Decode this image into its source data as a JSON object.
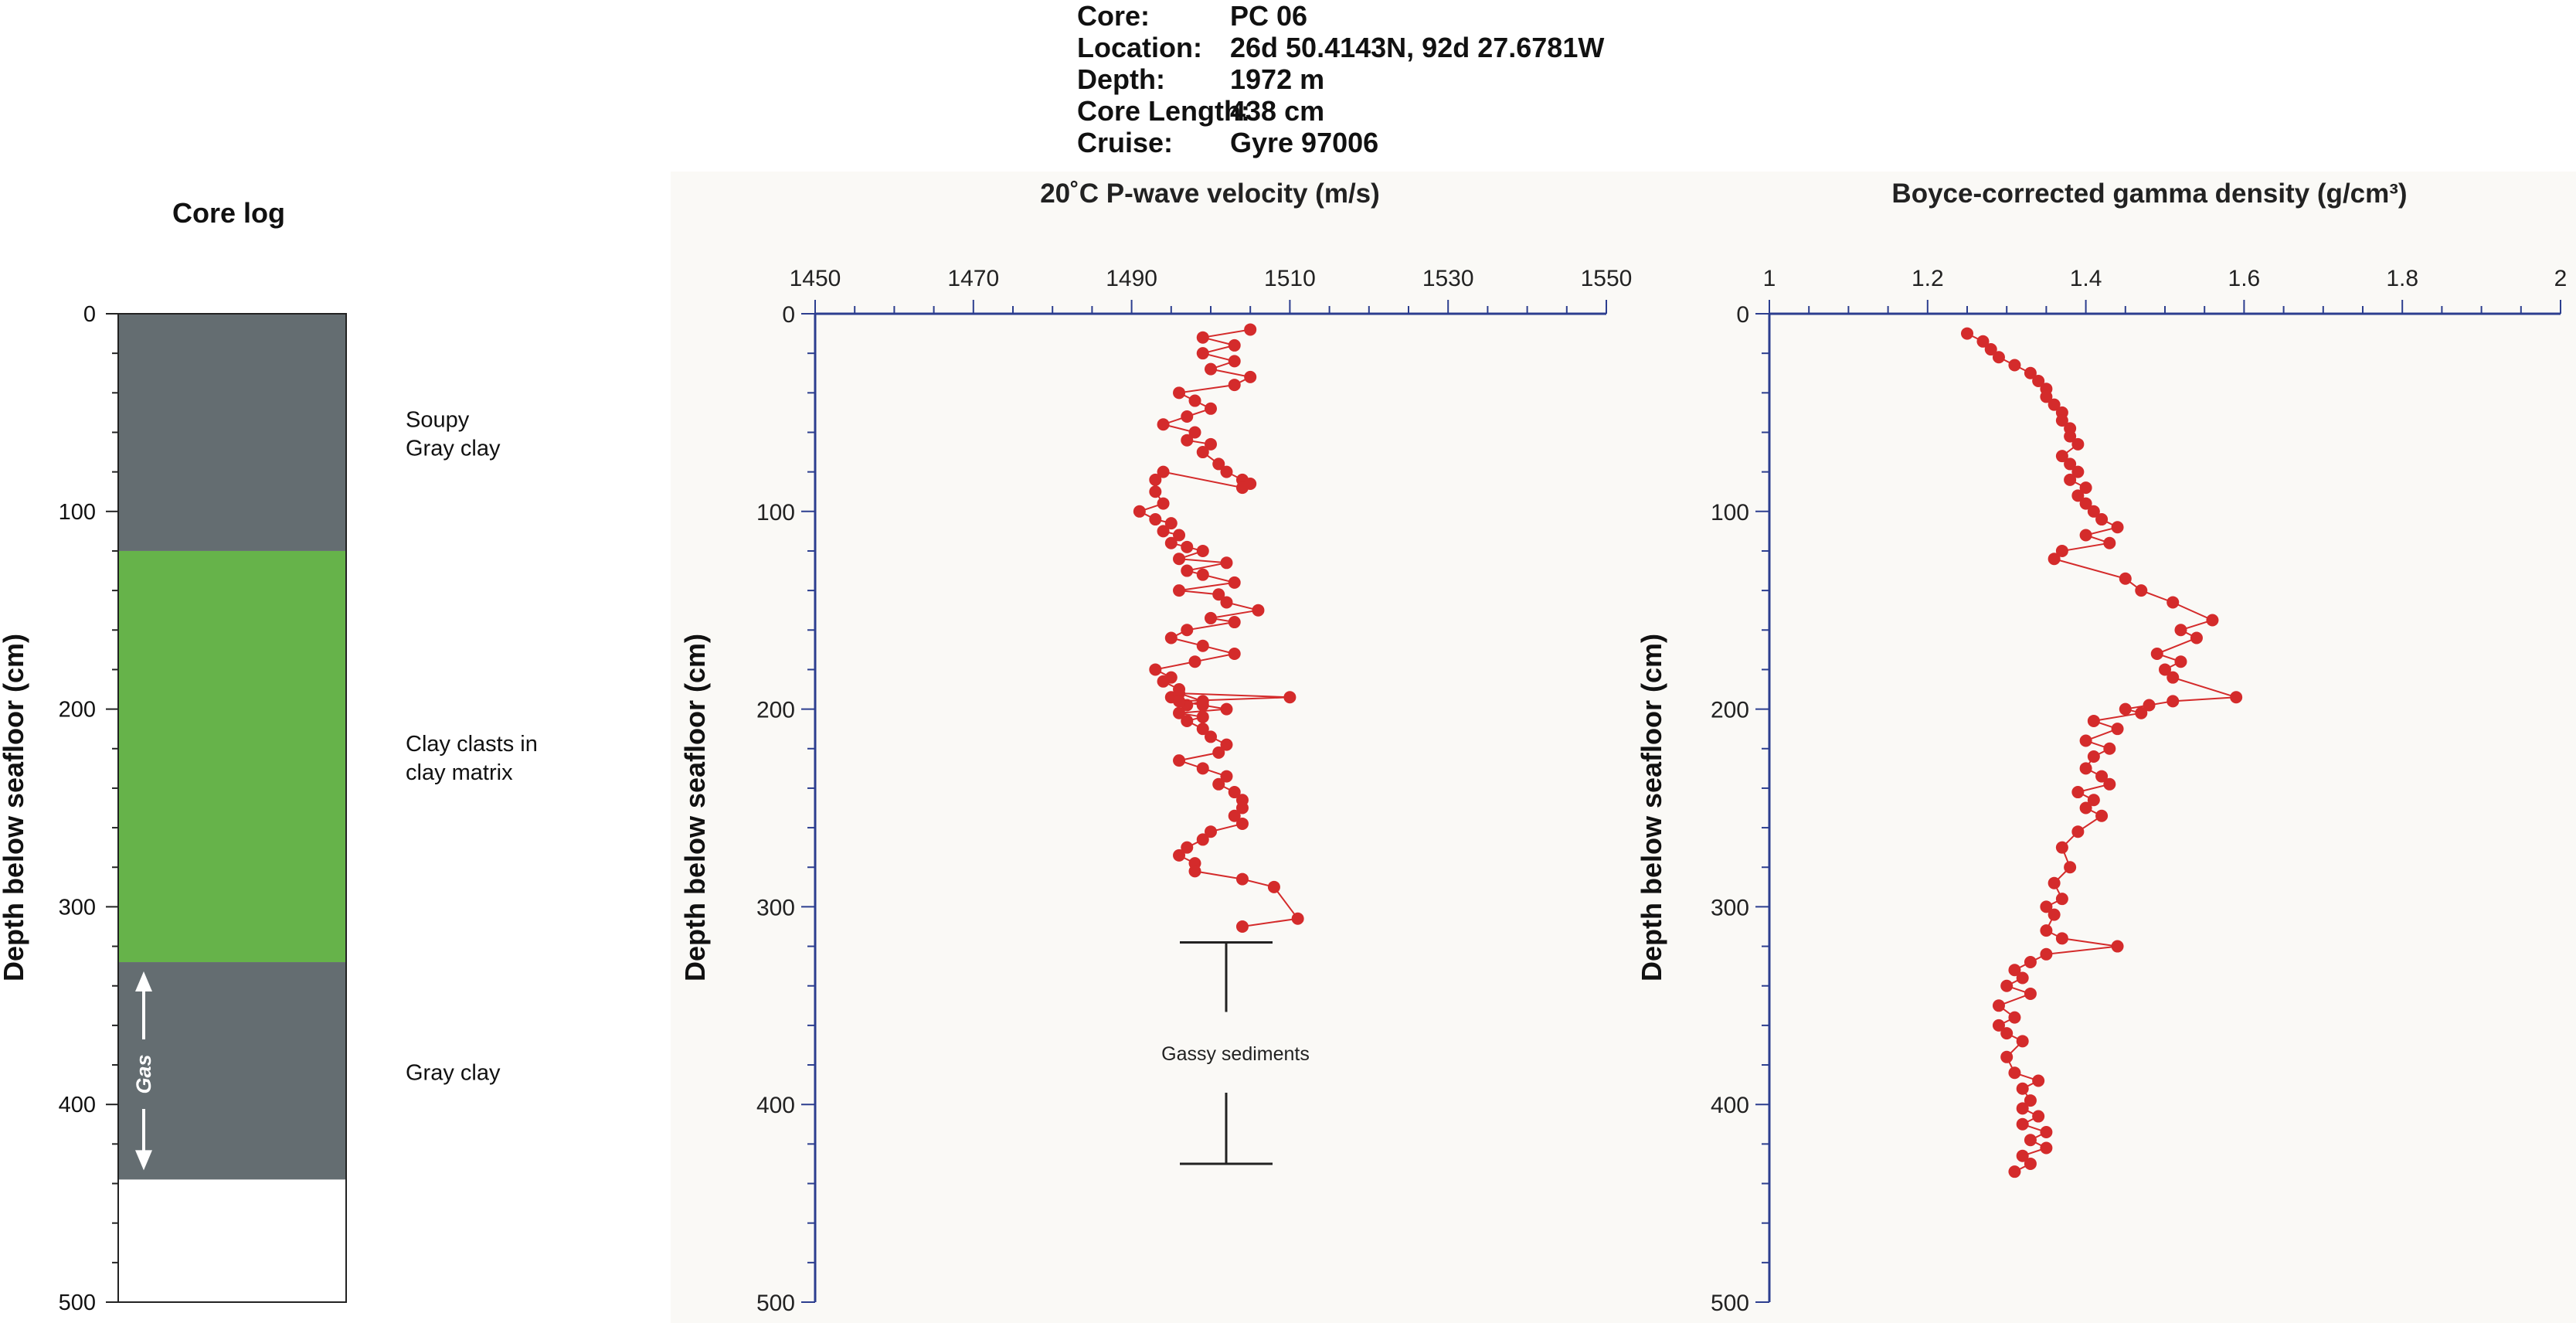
{
  "header": {
    "rows": [
      {
        "label": "Core:",
        "value": "PC 06"
      },
      {
        "label": "Location:",
        "value": "26d 50.4143N, 92d 27.6781W"
      },
      {
        "label": "Depth:",
        "value": "1972 m"
      },
      {
        "label": "Core Length:",
        "value": "438 cm"
      },
      {
        "label": "Cruise:",
        "value": "Gyre 97006"
      }
    ]
  },
  "colors": {
    "data_red": "#d42b2b",
    "axis_blue": "#2c3e8f",
    "clay_gray": "#646d71",
    "clast_green": "#66b34a",
    "panel_bg": "#faf9f6"
  },
  "chart_data": [
    {
      "type": "table",
      "title": "Core log",
      "ylabel": "Depth below seafloor (cm)",
      "ylim": [
        0,
        500
      ],
      "yticks": [
        "0",
        "100",
        "200",
        "300",
        "400",
        "500"
      ],
      "units": [
        {
          "top": 0,
          "bottom": 120,
          "label": "Soupy\nGray clay",
          "color": "#646d71"
        },
        {
          "top": 120,
          "bottom": 328,
          "label": "Clay clasts in\nclay matrix",
          "color": "#66b34a"
        },
        {
          "top": 328,
          "bottom": 438,
          "label": "Gray clay",
          "color": "#646d71"
        },
        {
          "top": 438,
          "bottom": 500,
          "label": "",
          "color": "#ffffff"
        }
      ],
      "gas_annotation": {
        "label": "Gas",
        "from": 328,
        "to": 438
      }
    },
    {
      "type": "line",
      "title": "20˚C P-wave velocity (m/s)",
      "ylabel": "Depth below seafloor (cm)",
      "xlim": [
        1450,
        1550
      ],
      "ylim": [
        0,
        500
      ],
      "xticks": [
        "1450",
        "1470",
        "1490",
        "1510",
        "1530",
        "1550"
      ],
      "yticks": [
        "0",
        "100",
        "200",
        "300",
        "400",
        "500"
      ],
      "annotation": {
        "text": "Gassy sediments",
        "from": 318,
        "to": 430
      },
      "x": [
        1505,
        1499,
        1503,
        1499,
        1503,
        1500,
        1505,
        1503,
        1496,
        1498,
        1500,
        1497,
        1494,
        1498,
        1497,
        1500,
        1499,
        1501,
        1502,
        1504,
        1505,
        1504,
        1494,
        1493,
        1493,
        1494,
        1491,
        1493,
        1495,
        1494,
        1496,
        1495,
        1497,
        1499,
        1496,
        1502,
        1497,
        1499,
        1503,
        1496,
        1501,
        1502,
        1506,
        1500,
        1503,
        1497,
        1495,
        1499,
        1503,
        1498,
        1493,
        1495,
        1494,
        1496,
        1495,
        1497,
        1499,
        1496,
        1510,
        1496,
        1499,
        1502,
        1496,
        1499,
        1497,
        1499,
        1500,
        1502,
        1501,
        1496,
        1499,
        1502,
        1501,
        1503,
        1504,
        1504,
        1503,
        1504,
        1500,
        1499,
        1497,
        1496,
        1498,
        1498,
        1504,
        1508,
        1511,
        1504
      ],
      "y": [
        8,
        12,
        16,
        20,
        24,
        28,
        32,
        36,
        40,
        44,
        48,
        52,
        56,
        60,
        64,
        66,
        70,
        76,
        80,
        84,
        86,
        88,
        80,
        84,
        90,
        96,
        100,
        104,
        106,
        110,
        112,
        116,
        118,
        120,
        124,
        126,
        130,
        132,
        136,
        140,
        142,
        146,
        150,
        154,
        156,
        160,
        164,
        168,
        172,
        176,
        180,
        184,
        186,
        190,
        194,
        198,
        196,
        192,
        194,
        196,
        198,
        200,
        202,
        204,
        206,
        210,
        214,
        218,
        222,
        226,
        230,
        234,
        238,
        242,
        246,
        250,
        254,
        258,
        262,
        266,
        270,
        274,
        278,
        282,
        286,
        290,
        306,
        310
      ]
    },
    {
      "type": "line",
      "title": "Boyce-corrected gamma density (g/cm³)",
      "ylabel": "Depth below seafloor (cm)",
      "xlim": [
        1,
        2
      ],
      "ylim": [
        0,
        500
      ],
      "xticks": [
        "1",
        "1.2",
        "1.4",
        "1.6",
        "1.8",
        "2"
      ],
      "yticks": [
        "0",
        "100",
        "200",
        "300",
        "400",
        "500"
      ],
      "x": [
        1.25,
        1.27,
        1.28,
        1.29,
        1.31,
        1.33,
        1.34,
        1.35,
        1.35,
        1.36,
        1.37,
        1.37,
        1.38,
        1.38,
        1.39,
        1.37,
        1.38,
        1.39,
        1.38,
        1.4,
        1.39,
        1.4,
        1.41,
        1.42,
        1.44,
        1.4,
        1.43,
        1.37,
        1.36,
        1.45,
        1.47,
        1.51,
        1.56,
        1.52,
        1.54,
        1.49,
        1.52,
        1.5,
        1.51,
        1.59,
        1.51,
        1.48,
        1.45,
        1.47,
        1.41,
        1.44,
        1.4,
        1.43,
        1.41,
        1.4,
        1.42,
        1.43,
        1.39,
        1.41,
        1.4,
        1.42,
        1.39,
        1.37,
        1.38,
        1.36,
        1.37,
        1.35,
        1.36,
        1.35,
        1.37,
        1.44,
        1.35,
        1.33,
        1.31,
        1.32,
        1.3,
        1.33,
        1.29,
        1.31,
        1.29,
        1.3,
        1.32,
        1.3,
        1.31,
        1.34,
        1.32,
        1.33,
        1.32,
        1.34,
        1.32,
        1.35,
        1.33,
        1.35,
        1.32,
        1.33,
        1.31
      ],
      "y": [
        10,
        14,
        18,
        22,
        26,
        30,
        34,
        38,
        42,
        46,
        50,
        54,
        58,
        62,
        66,
        72,
        76,
        80,
        84,
        88,
        92,
        96,
        100,
        104,
        108,
        112,
        116,
        120,
        124,
        134,
        140,
        146,
        155,
        160,
        164,
        172,
        176,
        180,
        184,
        194,
        196,
        198,
        200,
        202,
        206,
        210,
        216,
        220,
        224,
        230,
        234,
        238,
        242,
        246,
        250,
        254,
        262,
        270,
        280,
        288,
        296,
        300,
        304,
        312,
        316,
        320,
        324,
        328,
        332,
        336,
        340,
        344,
        350,
        356,
        360,
        364,
        368,
        376,
        384,
        388,
        392,
        398,
        402,
        406,
        410,
        414,
        418,
        422,
        426,
        430,
        434
      ]
    }
  ]
}
